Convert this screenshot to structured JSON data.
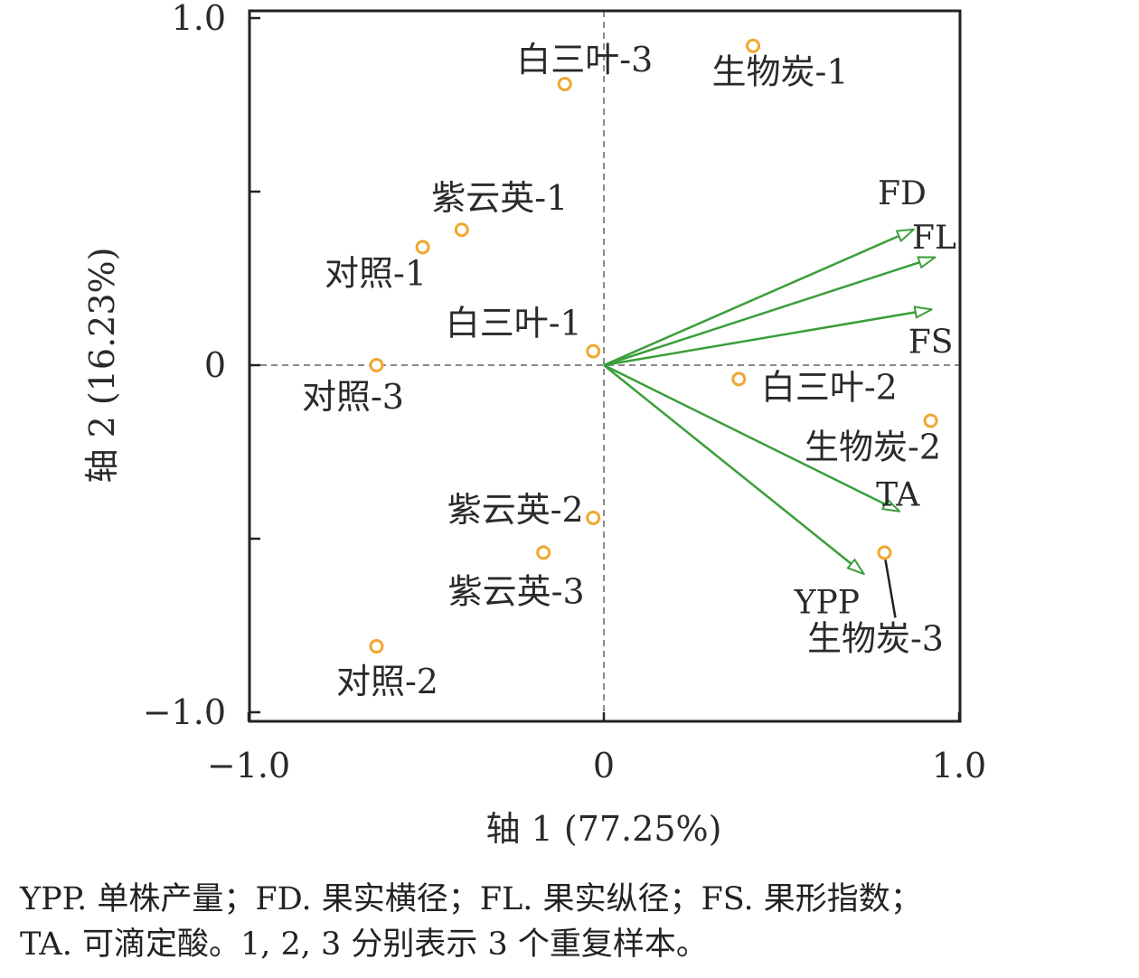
{
  "chart_data": {
    "type": "scatter",
    "subtype": "biplot",
    "xlabel": "轴 1 (77.25%)",
    "ylabel": "轴 2 (16.23%)",
    "xlim": [
      -1.0,
      1.0
    ],
    "ylim": [
      -1.0,
      1.0
    ],
    "x_ticks": [
      -1.0,
      0,
      1.0
    ],
    "x_tick_labels": [
      "−1.0",
      "0",
      "1.0"
    ],
    "y_ticks": [
      1.0,
      0,
      -1.0
    ],
    "y_tick_labels": [
      "1.0",
      "0",
      "−1.0"
    ],
    "y_minor_ticks": [
      0.5,
      -0.5
    ],
    "reference_lines": {
      "x": 0,
      "y": 0,
      "style": "dashed"
    },
    "grid": false,
    "colors": {
      "points": "#F0A830",
      "arrows": "#3A9E3A",
      "reference": "#8a8a8a",
      "axes": "#222222"
    },
    "points": [
      {
        "label": "白三叶-3",
        "x": -0.11,
        "y": 0.81
      },
      {
        "label": "生物炭-1",
        "x": 0.42,
        "y": 0.92
      },
      {
        "label": "紫云英-1",
        "x": -0.4,
        "y": 0.39
      },
      {
        "label": "对照-1",
        "x": -0.51,
        "y": 0.34
      },
      {
        "label": "白三叶-1",
        "x": -0.03,
        "y": 0.04
      },
      {
        "label": "对照-3",
        "x": -0.64,
        "y": 0.0
      },
      {
        "label": "白三叶-2",
        "x": 0.38,
        "y": -0.04
      },
      {
        "label": "生物炭-2",
        "x": 0.92,
        "y": -0.16
      },
      {
        "label": "紫云英-2",
        "x": -0.03,
        "y": -0.44
      },
      {
        "label": "紫云英-3",
        "x": -0.17,
        "y": -0.54
      },
      {
        "label": "生物炭-3",
        "x": 0.79,
        "y": -0.54
      },
      {
        "label": "对照-2",
        "x": -0.64,
        "y": -0.81
      }
    ],
    "vectors": [
      {
        "label": "FD",
        "x": 0.87,
        "y": 0.39
      },
      {
        "label": "FL",
        "x": 0.93,
        "y": 0.31
      },
      {
        "label": "FS",
        "x": 0.92,
        "y": 0.16
      },
      {
        "label": "TA",
        "x": 0.83,
        "y": -0.42
      },
      {
        "label": "YPP",
        "x": 0.73,
        "y": -0.6
      }
    ]
  },
  "caption": {
    "line1": "YPP. 单株产量；FD. 果实横径；FL. 果实纵径；FS. 果形指数；",
    "line2": "TA. 可滴定酸。1, 2, 3 分别表示 3 个重复样本。"
  }
}
